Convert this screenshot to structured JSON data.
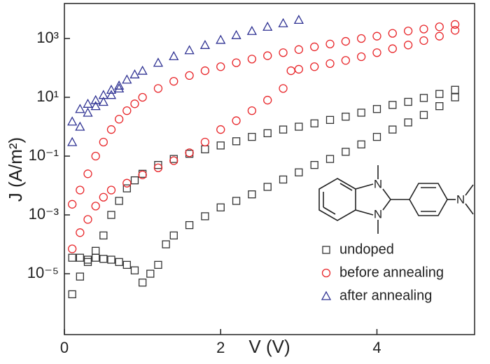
{
  "chart_data": {
    "type": "scatter",
    "x_label": "V (V)",
    "y_label": "J (A/m²)",
    "xlim": [
      0,
      5.25
    ],
    "xticks": [
      0,
      2,
      4
    ],
    "ylim": [
      8.5e-08,
      15500
    ],
    "y_scale": "log",
    "yticks": [
      {
        "value": 1e-05,
        "label": "10⁻⁵"
      },
      {
        "value": 0.001,
        "label": "10⁻³"
      },
      {
        "value": 0.1,
        "label": "10⁻¹"
      },
      {
        "value": 10,
        "label": "10¹"
      },
      {
        "value": 1000,
        "label": "10³"
      }
    ],
    "legend": "lower right",
    "series": [
      {
        "name": "undoped",
        "color": "#333333",
        "marker": "square",
        "x": [
          0.1,
          0.2,
          0.3,
          0.4,
          0.5,
          0.6,
          0.7,
          0.8,
          0.9,
          1.0,
          1.1,
          1.2,
          1.3,
          1.4,
          1.6,
          1.8,
          2.0,
          2.2,
          2.4,
          2.6,
          2.8,
          3.0,
          3.2,
          3.4,
          3.6,
          3.8,
          4.0,
          4.2,
          4.4,
          4.6,
          4.8,
          5.0,
          0.1,
          0.2,
          0.3,
          0.4,
          0.5,
          0.6,
          0.7,
          0.8,
          0.9,
          1.0,
          1.2,
          1.4,
          1.6,
          1.8,
          2.0,
          2.2,
          2.4,
          2.6,
          2.8,
          3.0,
          3.2,
          3.4,
          3.6,
          3.8,
          4.0,
          4.2,
          4.4,
          4.6,
          4.8,
          5.0
        ],
        "values": [
          3.5e-05,
          3.5e-05,
          3e-05,
          3.5e-05,
          3.2e-05,
          3e-05,
          2.5e-05,
          2e-05,
          1.3e-05,
          5e-06,
          1e-05,
          2e-05,
          0.0001,
          0.0002,
          0.00045,
          0.0009,
          0.0018,
          0.003,
          0.005,
          0.009,
          0.016,
          0.028,
          0.05,
          0.08,
          0.14,
          0.25,
          0.45,
          0.8,
          1.4,
          2.5,
          5,
          10,
          2e-06,
          8e-06,
          2.5e-05,
          6e-05,
          0.0002,
          0.001,
          0.003,
          0.008,
          0.015,
          0.025,
          0.05,
          0.08,
          0.12,
          0.17,
          0.23,
          0.32,
          0.45,
          0.6,
          0.8,
          1.0,
          1.3,
          1.7,
          2.2,
          3,
          4,
          5.5,
          7,
          9.5,
          13,
          18
        ]
      },
      {
        "name": "before annealing",
        "color": "#e8262a",
        "marker": "circle",
        "x": [
          0.1,
          0.2,
          0.3,
          0.4,
          0.5,
          0.6,
          0.8,
          1.0,
          1.2,
          1.4,
          1.6,
          1.8,
          2.0,
          2.2,
          2.4,
          2.6,
          2.8,
          2.9,
          3.0,
          3.2,
          3.4,
          3.6,
          3.8,
          4.0,
          4.2,
          4.4,
          4.6,
          4.8,
          5.0,
          0.1,
          0.2,
          0.3,
          0.4,
          0.5,
          0.6,
          0.7,
          0.8,
          0.9,
          1.0,
          1.2,
          1.4,
          1.6,
          1.8,
          2.0,
          2.2,
          2.4,
          2.6,
          2.8,
          3.0,
          3.2,
          3.4,
          3.6,
          3.8,
          4.0,
          4.2,
          4.4,
          4.6,
          4.8,
          5.0
        ],
        "values": [
          7e-05,
          0.00025,
          0.0007,
          0.002,
          0.004,
          0.007,
          0.012,
          0.023,
          0.04,
          0.07,
          0.13,
          0.3,
          0.8,
          1.6,
          3.5,
          8,
          20,
          80,
          90,
          110,
          140,
          180,
          240,
          330,
          450,
          600,
          850,
          1200,
          1900,
          0.0023,
          0.007,
          0.025,
          0.1,
          0.3,
          0.8,
          1.8,
          3.5,
          6,
          10,
          20,
          35,
          55,
          80,
          110,
          150,
          200,
          260,
          330,
          420,
          520,
          650,
          800,
          1000,
          1200,
          1500,
          1800,
          2100,
          2500,
          3000
        ]
      },
      {
        "name": "after annealing",
        "color": "#2e3192",
        "marker": "triangle",
        "x": [
          0.1,
          0.2,
          0.3,
          0.4,
          0.5,
          0.6,
          0.7,
          0.8,
          0.9,
          1.0,
          1.2,
          1.4,
          1.6,
          1.8,
          2.0,
          2.2,
          2.4,
          2.6,
          2.8,
          3.0,
          0.1,
          0.2,
          0.3,
          0.4,
          0.5,
          0.6,
          0.7
        ],
        "values": [
          1.5,
          4,
          6,
          8,
          12,
          18,
          25,
          40,
          60,
          80,
          150,
          250,
          400,
          600,
          900,
          1300,
          1800,
          2500,
          3300,
          4300,
          0.3,
          1,
          3,
          5,
          7,
          12,
          20
        ]
      }
    ]
  },
  "molecule": {
    "atoms": [
      "N",
      "N",
      "N"
    ]
  }
}
